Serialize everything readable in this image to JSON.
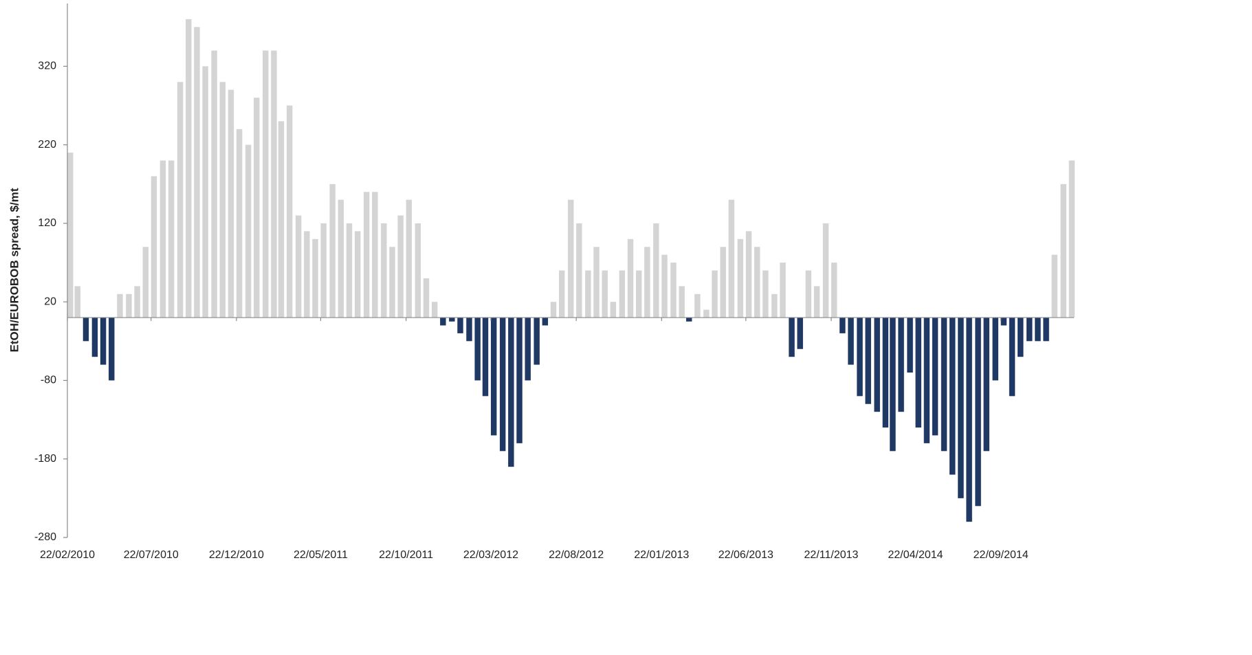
{
  "chart_data": {
    "type": "bar",
    "y_label": "EtOH/EUROBOB spread, $/mt",
    "x": [
      "22/02/2010",
      "07/03/2010",
      "22/03/2010",
      "07/04/2010",
      "22/04/2010",
      "07/05/2010",
      "22/05/2010",
      "07/06/2010",
      "22/06/2010",
      "07/07/2010",
      "22/07/2010",
      "07/08/2010",
      "22/08/2010",
      "07/09/2010",
      "22/09/2010",
      "07/10/2010",
      "22/10/2010",
      "07/11/2010",
      "22/11/2010",
      "07/12/2010",
      "22/12/2010",
      "07/01/2011",
      "22/01/2011",
      "07/02/2011",
      "22/02/2011",
      "07/03/2011",
      "22/03/2011",
      "07/04/2011",
      "22/04/2011",
      "07/05/2011",
      "22/05/2011",
      "07/06/2011",
      "22/06/2011",
      "07/07/2011",
      "22/07/2011",
      "07/08/2011",
      "22/08/2011",
      "07/09/2011",
      "22/09/2011",
      "07/10/2011",
      "22/10/2011",
      "07/11/2011",
      "22/11/2011",
      "07/12/2011",
      "22/12/2011",
      "07/01/2012",
      "22/01/2012",
      "07/02/2012",
      "22/02/2012",
      "07/03/2012",
      "22/03/2012",
      "07/04/2012",
      "22/04/2012",
      "07/05/2012",
      "22/05/2012",
      "07/06/2012",
      "22/06/2012",
      "07/07/2012",
      "22/07/2012",
      "07/08/2012",
      "22/08/2012",
      "07/09/2012",
      "22/09/2012",
      "07/10/2012",
      "22/10/2012",
      "07/11/2012",
      "22/11/2012",
      "07/12/2012",
      "22/12/2012",
      "07/01/2013",
      "22/01/2013",
      "07/02/2013",
      "22/02/2013",
      "07/03/2013",
      "22/03/2013",
      "07/04/2013",
      "22/04/2013",
      "07/05/2013",
      "22/05/2013",
      "07/06/2013",
      "22/06/2013",
      "07/07/2013",
      "22/07/2013",
      "07/08/2013",
      "22/08/2013",
      "07/09/2013",
      "22/09/2013",
      "07/10/2013",
      "22/10/2013",
      "07/11/2013",
      "22/11/2013",
      "07/12/2013",
      "22/12/2013",
      "07/01/2014",
      "22/01/2014",
      "07/02/2014",
      "22/02/2014",
      "07/03/2014",
      "22/03/2014",
      "07/04/2014",
      "22/04/2014",
      "07/05/2014",
      "22/05/2014",
      "07/06/2014",
      "22/06/2014",
      "07/07/2014",
      "22/07/2014",
      "07/08/2014",
      "22/08/2014",
      "07/09/2014",
      "22/09/2014",
      "07/10/2014",
      "22/10/2014",
      "07/11/2014",
      "22/11/2014",
      "07/12/2014",
      "22/12/2014",
      "07/01/2015",
      "22/01/2015"
    ],
    "values": [
      210,
      40,
      -30,
      -50,
      -60,
      -80,
      30,
      30,
      40,
      90,
      180,
      200,
      200,
      300,
      380,
      370,
      320,
      340,
      300,
      290,
      240,
      220,
      280,
      340,
      340,
      250,
      270,
      130,
      110,
      100,
      120,
      170,
      150,
      120,
      110,
      160,
      160,
      120,
      90,
      130,
      150,
      120,
      50,
      20,
      -10,
      -5,
      -20,
      -30,
      -80,
      -100,
      -150,
      -170,
      -190,
      -160,
      -80,
      -60,
      -10,
      20,
      60,
      150,
      120,
      60,
      90,
      60,
      20,
      60,
      100,
      60,
      90,
      120,
      80,
      70,
      40,
      -5,
      30,
      10,
      60,
      90,
      150,
      100,
      110,
      90,
      60,
      30,
      70,
      -50,
      -40,
      60,
      40,
      120,
      70,
      -20,
      -60,
      -100,
      -110,
      -120,
      -140,
      -170,
      -120,
      -70,
      -140,
      -160,
      -150,
      -170,
      -200,
      -230,
      -260,
      -240,
      -170,
      -80,
      -10,
      -100,
      -50,
      -30,
      -30,
      -30,
      80,
      170,
      200
    ],
    "color_positive": "#d4d4d4",
    "color_negative": "#1f3864",
    "xlim": [
      "22/02/2010",
      "31/01/2015"
    ],
    "xticks": [
      "22/02/2010",
      "22/07/2010",
      "22/12/2010",
      "22/05/2011",
      "22/10/2011",
      "22/03/2012",
      "22/08/2012",
      "22/01/2013",
      "22/06/2013",
      "22/11/2013",
      "22/04/2014",
      "22/09/2014"
    ],
    "ylim": [
      -280,
      400
    ],
    "yticks": [
      -280,
      -180,
      -80,
      20,
      120,
      220,
      320
    ]
  }
}
